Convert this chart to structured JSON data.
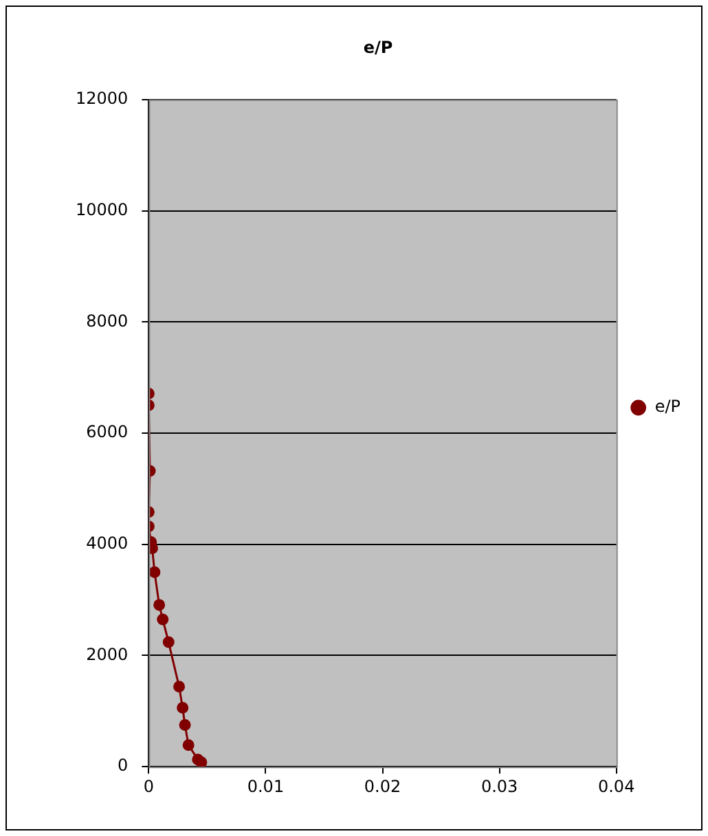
{
  "chart_data": {
    "type": "line",
    "title": "e/P",
    "series": [
      {
        "name": "e/P",
        "color": "#800000",
        "x": [
          0,
          0,
          0.0001,
          0,
          0,
          0.0002,
          0.0003,
          0.0005,
          0.0009,
          0.0012,
          0.0017,
          0.0026,
          0.0029,
          0.0031,
          0.0034,
          0.0042,
          0.0045
        ],
        "values": [
          6710,
          6500,
          5320,
          4580,
          4320,
          4040,
          3930,
          3500,
          2910,
          2650,
          2240,
          1440,
          1060,
          750,
          390,
          130,
          80
        ]
      }
    ],
    "xlim": [
      0,
      0.04
    ],
    "xticks": [
      0,
      0.01,
      0.02,
      0.03,
      0.04
    ],
    "ylim": [
      0,
      12000
    ],
    "yticks": [
      0,
      2000,
      4000,
      6000,
      8000,
      10000,
      12000
    ],
    "grid": "y",
    "legend": "right",
    "marker": "circle",
    "line_style": "solid"
  }
}
